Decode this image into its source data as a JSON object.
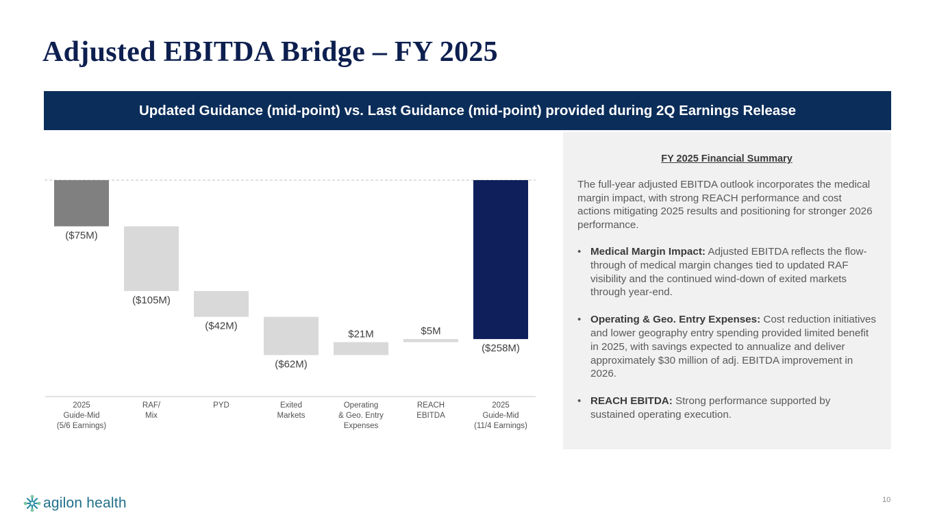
{
  "title": "Adjusted EBITDA Bridge – FY 2025",
  "banner": "Updated Guidance (mid-point) vs. Last Guidance (mid-point) provided during 2Q Earnings Release",
  "colors": {
    "navy": "#0b2d5a",
    "chart_total_navy": "#0e1f5b",
    "start_gray": "#808080",
    "step_gray": "#d9d9d9",
    "logo_teal": "#1f6f8a"
  },
  "chart_data": {
    "type": "bar",
    "subtype": "waterfall",
    "title": "",
    "xlabel": "",
    "ylabel": "",
    "categories": [
      "2025\nGuide-Mid\n(5/6 Earnings)",
      "RAF/\nMix",
      "PYD",
      "Exited\nMarkets",
      "Operating\n& Geo. Entry\nExpenses",
      "REACH\nEBITDA",
      "2025\nGuide-Mid\n(11/4 Earnings)"
    ],
    "values": [
      -75,
      -105,
      -42,
      -62,
      21,
      5,
      -258
    ],
    "value_labels": [
      "($75M)",
      "($105M)",
      "($42M)",
      "($62M)",
      "$21M",
      "$5M",
      "($258M)"
    ],
    "kinds": [
      "total",
      "step",
      "step",
      "step",
      "step",
      "step",
      "total"
    ],
    "units": "$M",
    "baseline": 0,
    "ylim": [
      -300,
      0
    ]
  },
  "summary": {
    "heading": "FY 2025 Financial Summary",
    "intro": "The full-year adjusted EBITDA outlook incorporates the medical margin impact, with strong REACH performance and cost actions mitigating 2025 results and positioning for stronger 2026 performance.",
    "bullets": [
      {
        "bold": "Medical Margin Impact:",
        "text": " Adjusted EBITDA reflects the flow-through of medical margin changes tied to updated RAF visibility and the continued wind-down of exited markets through year-end."
      },
      {
        "bold": "Operating & Geo. Entry Expenses:",
        "text": " Cost reduction initiatives and lower geography entry spending provided limited benefit in 2025, with savings expected to annualize and deliver approximately $30 million of adj. EBITDA improvement in 2026."
      },
      {
        "bold": "REACH EBITDA:",
        "text": " Strong performance supported by sustained operating execution."
      }
    ]
  },
  "logo": {
    "text": "agilon health",
    "icon": "agilon-logo-icon"
  },
  "page_number": "10"
}
